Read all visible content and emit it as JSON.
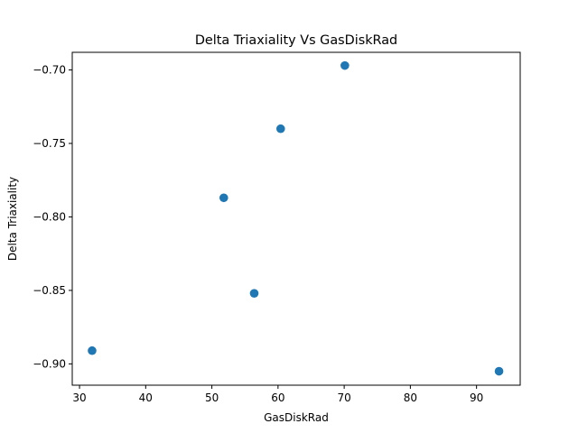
{
  "chart_data": {
    "type": "scatter",
    "title": "Delta Triaxiality Vs GasDiskRad",
    "xlabel": "GasDiskRad",
    "ylabel": "Delta Triaxiality",
    "xlim": [
      28.9,
      96.6
    ],
    "ylim": [
      -0.9145,
      -0.688
    ],
    "xticks": [
      30,
      40,
      50,
      60,
      70,
      80,
      90
    ],
    "xtick_labels": [
      "30",
      "40",
      "50",
      "60",
      "70",
      "80",
      "90"
    ],
    "yticks": [
      -0.9,
      -0.85,
      -0.8,
      -0.75,
      -0.7
    ],
    "ytick_labels": [
      "−0.90",
      "−0.85",
      "−0.80",
      "−0.75",
      "−0.70"
    ],
    "grid": false,
    "marker_color": "#1f77b4",
    "points": [
      {
        "x": 31.9,
        "y": -0.891
      },
      {
        "x": 51.8,
        "y": -0.787
      },
      {
        "x": 56.4,
        "y": -0.852
      },
      {
        "x": 60.4,
        "y": -0.74
      },
      {
        "x": 70.1,
        "y": -0.697
      },
      {
        "x": 93.4,
        "y": -0.905
      }
    ]
  }
}
